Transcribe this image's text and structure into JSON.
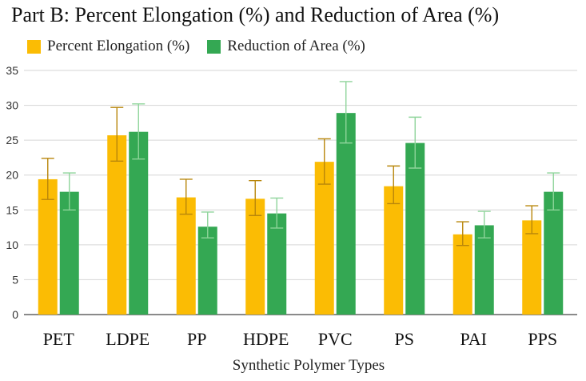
{
  "chart_data": {
    "type": "bar",
    "title": "Part B: Percent Elongation (%) and Reduction of Area (%)",
    "xlabel": "Synthetic Polymer Types",
    "ylabel": "",
    "ylim": [
      0,
      35
    ],
    "yticks": [
      "0",
      "5",
      "10",
      "15",
      "20",
      "25",
      "30",
      "35"
    ],
    "grid": true,
    "legend_position": "top-left",
    "categories": [
      "PET",
      "LDPE",
      "PP",
      "HDPE",
      "PVC",
      "PS",
      "PAI",
      "PPS"
    ],
    "series": [
      {
        "name": "Percent Elongation (%)",
        "color": "#FBBC04",
        "error_color": "#B8860B",
        "values": [
          19.4,
          25.7,
          16.8,
          16.6,
          21.9,
          18.4,
          11.5,
          13.5
        ],
        "error_low": [
          16.5,
          22.0,
          14.4,
          14.2,
          18.7,
          15.9,
          9.9,
          11.6
        ],
        "error_high": [
          22.4,
          29.7,
          19.4,
          19.2,
          25.2,
          21.3,
          13.3,
          15.6
        ]
      },
      {
        "name": "Reduction of Area (%)",
        "color": "#34A853",
        "error_color": "#8ED49A",
        "values": [
          17.6,
          26.2,
          12.6,
          14.5,
          28.9,
          24.6,
          12.8,
          17.6
        ],
        "error_low": [
          15.0,
          22.3,
          11.0,
          12.4,
          24.6,
          21.0,
          11.0,
          15.0
        ],
        "error_high": [
          20.3,
          30.2,
          14.7,
          16.7,
          33.4,
          28.3,
          14.8,
          20.3
        ]
      }
    ]
  }
}
